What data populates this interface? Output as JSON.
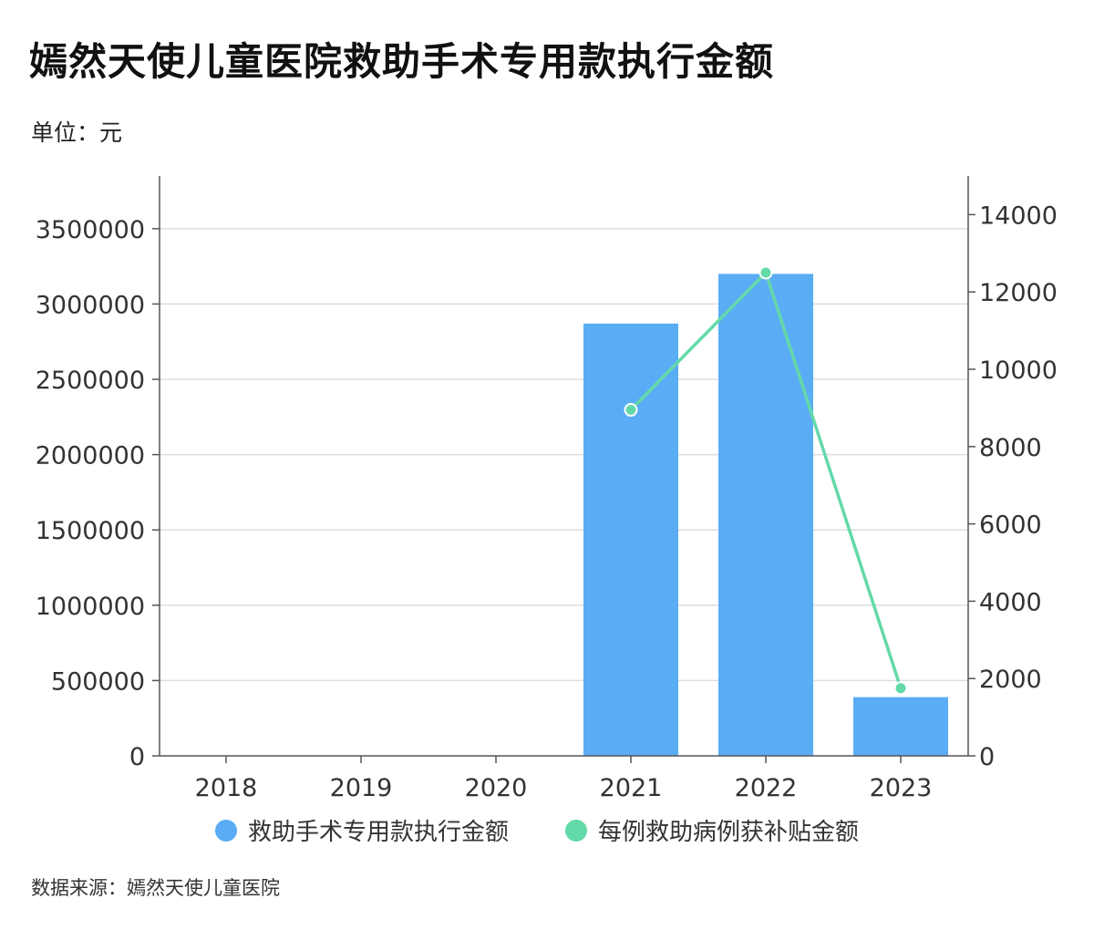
{
  "title": "嫣然天使儿童医院救助手术专用款执行金额",
  "unit_label": "单位：元",
  "source_label": "数据来源：嫣然天使儿童医院",
  "colors": {
    "bar": "#5aadf4",
    "line": "#63d9a9",
    "grid": "#dddddd",
    "axis": "#555555",
    "text": "#333333"
  },
  "chart_data": {
    "type": "bar",
    "categories": [
      "2018",
      "2019",
      "2020",
      "2021",
      "2022",
      "2023"
    ],
    "series": [
      {
        "name": "救助手术专用款执行金额",
        "type": "bar",
        "axis": "left",
        "values": [
          0,
          0,
          0,
          2870000,
          3200000,
          390000
        ]
      },
      {
        "name": "每例救助病例获补贴金额",
        "type": "line",
        "axis": "right",
        "values": [
          null,
          null,
          null,
          8950,
          12500,
          1750
        ]
      }
    ],
    "y_left": {
      "ticks": [
        0,
        500000,
        1000000,
        1500000,
        2000000,
        2500000,
        3000000,
        3500000
      ],
      "ylim": [
        0,
        3850000
      ]
    },
    "y_right": {
      "ticks": [
        0,
        2000,
        4000,
        6000,
        8000,
        10000,
        12000,
        14000
      ],
      "ylim": [
        0,
        15000
      ]
    },
    "grid": true,
    "legend_position": "bottom"
  }
}
